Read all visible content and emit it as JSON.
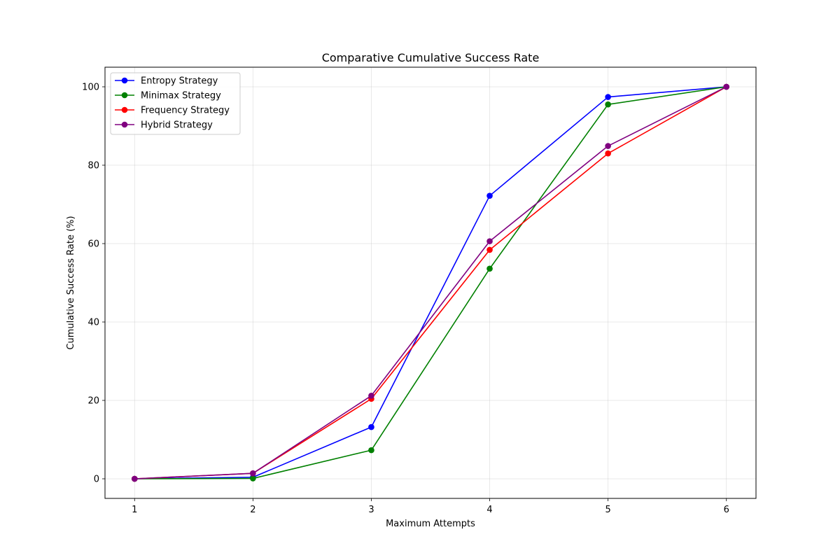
{
  "chart_data": {
    "type": "line",
    "title": "Comparative Cumulative Success Rate",
    "xlabel": "Maximum Attempts",
    "ylabel": "Cumulative Success Rate (%)",
    "x": [
      1,
      2,
      3,
      4,
      5,
      6
    ],
    "xlim": [
      0.75,
      6.25
    ],
    "ylim": [
      -5,
      105
    ],
    "xticks": [
      1,
      2,
      3,
      4,
      5,
      6
    ],
    "yticks": [
      0,
      20,
      40,
      60,
      80,
      100
    ],
    "grid": true,
    "legend_position": "top-left",
    "series": [
      {
        "name": "Entropy Strategy",
        "color": "#0000ff",
        "values": [
          0,
          0.4,
          13.2,
          72.2,
          97.4,
          100
        ]
      },
      {
        "name": "Minimax Strategy",
        "color": "#008000",
        "values": [
          0,
          0.1,
          7.3,
          53.6,
          95.5,
          100
        ]
      },
      {
        "name": "Frequency Strategy",
        "color": "#ff0000",
        "values": [
          0,
          1.4,
          20.4,
          58.4,
          83.0,
          100
        ]
      },
      {
        "name": "Hybrid Strategy",
        "color": "#800080",
        "values": [
          0,
          1.4,
          21.2,
          60.6,
          84.9,
          100
        ]
      }
    ]
  }
}
